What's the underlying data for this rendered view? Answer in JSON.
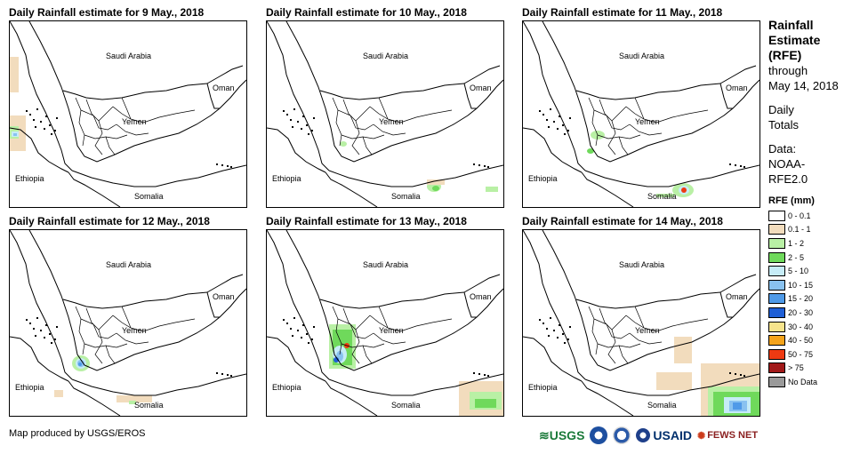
{
  "panels": [
    {
      "title": "Daily Rainfall estimate for 9 May., 2018"
    },
    {
      "title": "Daily Rainfall estimate for 10 May., 2018"
    },
    {
      "title": "Daily Rainfall estimate for 11 May., 2018"
    },
    {
      "title": "Daily Rainfall estimate for 12 May., 2018"
    },
    {
      "title": "Daily Rainfall estimate for 13 May., 2018"
    },
    {
      "title": "Daily Rainfall estimate for 14 May., 2018"
    }
  ],
  "map_labels": {
    "saudi": "Saudi Arabia",
    "oman": "Oman",
    "yemen": "Yemen",
    "ethiopia": "Ethiopia",
    "somalia": "Somalia"
  },
  "legend": {
    "title_line1": "Rainfall",
    "title_line2": "Estimate",
    "title_line3": "(RFE)",
    "through": "through",
    "date": "May 14, 2018",
    "daily": "Daily",
    "totals": "Totals",
    "data_label": "Data:",
    "source1": "NOAA-",
    "source2": "RFE2.0",
    "unit": "RFE (mm)",
    "items": [
      {
        "label": "0 - 0.1",
        "color": "#ffffff"
      },
      {
        "label": "0.1 - 1",
        "color": "#f2dcbd"
      },
      {
        "label": "1 - 2",
        "color": "#b9f0a5"
      },
      {
        "label": "2 - 5",
        "color": "#6fd95b"
      },
      {
        "label": "5 - 10",
        "color": "#c6ecf7"
      },
      {
        "label": "10 - 15",
        "color": "#89c2f0"
      },
      {
        "label": "15 - 20",
        "color": "#4f9ae8"
      },
      {
        "label": "20 - 30",
        "color": "#1f5fd6"
      },
      {
        "label": "30 - 40",
        "color": "#f7e48c"
      },
      {
        "label": "40 - 50",
        "color": "#f5a41b"
      },
      {
        "label": "50 - 75",
        "color": "#ee3a12"
      },
      {
        "label": "> 75",
        "color": "#a11919"
      },
      {
        "label": "No Data",
        "color": "#9a9a9a"
      }
    ]
  },
  "footer": {
    "credit": "Map produced by USGS/EROS",
    "logo_usgs": "USGS",
    "logo_usaid": "USAID",
    "logo_fews": "FEWS NET"
  }
}
